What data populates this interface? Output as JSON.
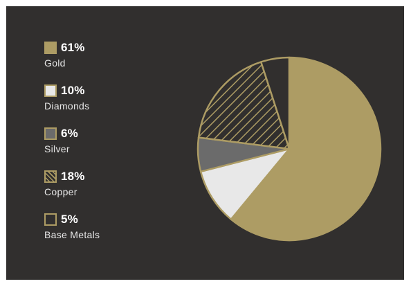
{
  "chart_data": {
    "type": "pie",
    "title": "",
    "legend_placement": "left",
    "slices": [
      {
        "name": "Gold",
        "value": 61,
        "label": "61%",
        "fill": "#ad9c64",
        "pattern": "solid"
      },
      {
        "name": "Diamonds",
        "value": 10,
        "label": "10%",
        "fill": "#e8e8e8",
        "pattern": "solid"
      },
      {
        "name": "Silver",
        "value": 6,
        "label": "6%",
        "fill": "#6b6b6b",
        "pattern": "solid"
      },
      {
        "name": "Copper",
        "value": 18,
        "label": "18%",
        "fill": "#312f2e",
        "pattern": "hatch"
      },
      {
        "name": "Base Metals",
        "value": 5,
        "label": "5%",
        "fill": "#312f2e",
        "pattern": "solid"
      }
    ]
  },
  "colors": {
    "background": "#312f2e",
    "accent": "#ad9c64",
    "text": "#ffffff"
  }
}
